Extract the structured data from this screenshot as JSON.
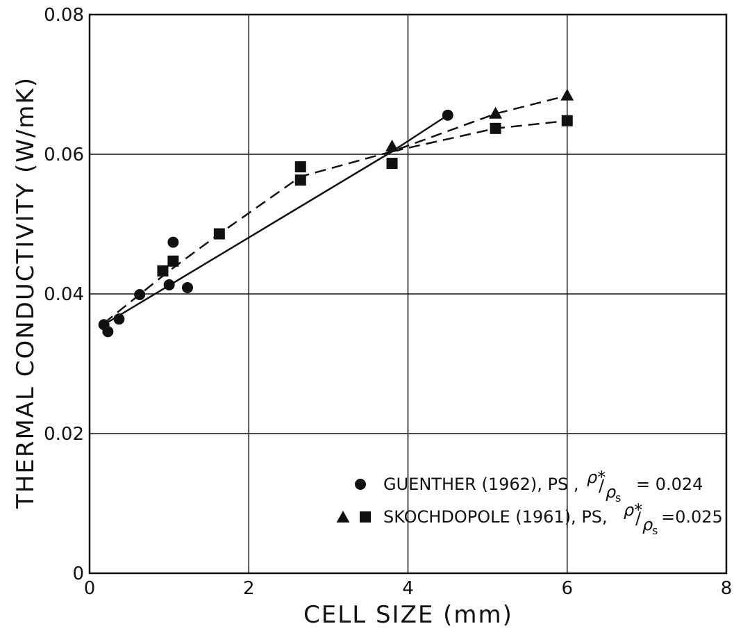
{
  "chart_data": {
    "type": "scatter",
    "xlabel": "CELL SIZE (mm)",
    "ylabel": "THERMAL CONDUCTIVITY (W/mK)",
    "xlim": [
      0,
      8
    ],
    "ylim": [
      0,
      0.08
    ],
    "x_ticks": [
      0,
      2,
      4,
      6,
      8
    ],
    "y_ticks": [
      0,
      0.02,
      0.04,
      0.06,
      0.08
    ],
    "x_tick_labels": [
      "0",
      "2",
      "4",
      "6",
      "8"
    ],
    "y_tick_labels": [
      "0",
      "0.02",
      "0.04",
      "0.06",
      "0.08"
    ],
    "grid": true,
    "legend_position": "bottom-right",
    "series": [
      {
        "legend": "GUENTHER (1962), PS",
        "marker": "circle",
        "x": [
          0.18,
          0.23,
          0.37,
          0.63,
          1.0,
          1.05,
          1.23,
          4.5
        ],
        "y": [
          0.0356,
          0.0346,
          0.0364,
          0.0399,
          0.0413,
          0.0474,
          0.0409,
          0.0656
        ]
      },
      {
        "legend": "SKOCHDOPOLE (1961), PS",
        "marker": "triangle",
        "x": [
          3.8,
          5.1,
          6.0
        ],
        "y": [
          0.0611,
          0.0658,
          0.0684
        ]
      },
      {
        "legend": "SKOCHDOPOLE (1961), PS",
        "marker": "square",
        "x": [
          0.92,
          1.05,
          1.63,
          2.65,
          2.65,
          3.8,
          5.1,
          6.0
        ],
        "y": [
          0.0433,
          0.0447,
          0.0486,
          0.0582,
          0.0563,
          0.0587,
          0.0637,
          0.0648
        ]
      }
    ],
    "fit_lines": [
      {
        "style": "solid",
        "x": [
          0.18,
          3.8,
          4.5
        ],
        "y": [
          0.0356,
          0.0604,
          0.0656
        ]
      },
      {
        "style": "dashed",
        "x": [
          0.18,
          1.0,
          1.63,
          2.65,
          3.8,
          5.1,
          6.0
        ],
        "y": [
          0.0358,
          0.0433,
          0.0486,
          0.0568,
          0.0604,
          0.0658,
          0.0684
        ]
      },
      {
        "style": "dashed",
        "x": [
          3.8,
          5.1,
          6.0
        ],
        "y": [
          0.0604,
          0.0637,
          0.0648
        ]
      }
    ],
    "legend": {
      "entries": [
        {
          "markers": [
            "circle"
          ],
          "text": "GUENTHER (1962), PS ,",
          "ratio_num": "ρ*",
          "ratio_den": "ρ",
          "ratio_sub": "s",
          "ratio_value": "= 0.024"
        },
        {
          "markers": [
            "triangle",
            "square"
          ],
          "text": "SKOCHDOPOLE (1961), PS,",
          "ratio_num": "ρ*",
          "ratio_den": "ρ",
          "ratio_sub": "s",
          "ratio_value": "=0.025"
        }
      ]
    }
  },
  "colors": {
    "ink": "#111111",
    "background": "#ffffff"
  }
}
